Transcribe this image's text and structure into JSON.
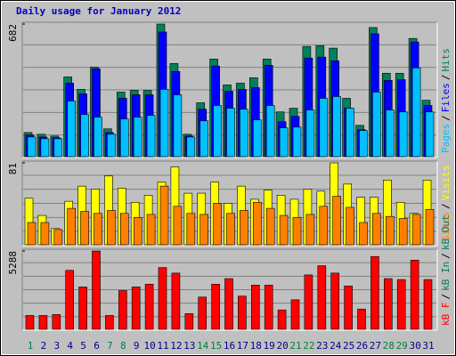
{
  "chart_data": [
    {
      "type": "bar",
      "title": "Daily usage for January 2012",
      "ylim": [
        0,
        682
      ],
      "yticks": [
        682
      ],
      "legend_reversed": true,
      "legend_separator": "/",
      "series": [
        {
          "name": "Hits",
          "color": "#00805c",
          "values": [
            124,
            115,
            106,
            410,
            346,
            461,
            143,
            332,
            341,
            341,
            682,
            479,
            115,
            277,
            502,
            369,
            378,
            406,
            502,
            230,
            249,
            567,
            571,
            558,
            300,
            161,
            664,
            429,
            429,
            608,
            290
          ]
        },
        {
          "name": "Files",
          "color": "#0000ff",
          "values": [
            111,
            101,
            97,
            378,
            323,
            452,
            124,
            300,
            318,
            318,
            641,
            438,
            106,
            244,
            466,
            337,
            346,
            355,
            470,
            180,
            207,
            507,
            512,
            493,
            249,
            138,
            632,
            392,
            396,
            590,
            263
          ]
        },
        {
          "name": "Pages",
          "color": "#00c0ff",
          "values": [
            101,
            92,
            92,
            286,
            217,
            203,
            115,
            194,
            203,
            212,
            346,
            318,
            101,
            184,
            263,
            249,
            244,
            189,
            263,
            148,
            152,
            240,
            300,
            309,
            249,
            134,
            332,
            240,
            230,
            456,
            230
          ]
        }
      ]
    },
    {
      "type": "bar",
      "ylim": [
        0,
        81
      ],
      "yticks": [
        81
      ],
      "legend_reversed": true,
      "legend_separator": "/",
      "series": [
        {
          "name": "Visits",
          "color": "#ffff00",
          "values": [
            46,
            29,
            16,
            43,
            58,
            55,
            68,
            56,
            42,
            49,
            62,
            77,
            51,
            51,
            62,
            41,
            58,
            45,
            54,
            49,
            45,
            55,
            53,
            81,
            60,
            47,
            47,
            64,
            42,
            31,
            64
          ]
        },
        {
          "name": "Sites",
          "color": "#ff8000",
          "values": [
            22,
            22,
            15,
            36,
            33,
            31,
            34,
            31,
            27,
            30,
            58,
            38,
            31,
            30,
            41,
            31,
            34,
            42,
            36,
            29,
            27,
            30,
            38,
            48,
            37,
            22,
            31,
            28,
            26,
            30,
            35
          ]
        }
      ]
    },
    {
      "type": "bar",
      "ylim": [
        0,
        5288
      ],
      "yticks": [
        5288
      ],
      "legend_reversed": false,
      "legend_separator": "/",
      "categories": [
        "1",
        "2",
        "3",
        "4",
        "5",
        "6",
        "7",
        "8",
        "9",
        "10",
        "11",
        "12",
        "13",
        "14",
        "15",
        "16",
        "17",
        "18",
        "19",
        "20",
        "21",
        "22",
        "23",
        "24",
        "25",
        "26",
        "27",
        "28",
        "29",
        "30",
        "31"
      ],
      "label_colors": [
        "#008040",
        "#00008b",
        "#00008b",
        "#00008b",
        "#00008b",
        "#00008b",
        "#008040",
        "#008040",
        "#00008b",
        "#00008b",
        "#00008b",
        "#00008b",
        "#00008b",
        "#008040",
        "#008040",
        "#00008b",
        "#00008b",
        "#00008b",
        "#00008b",
        "#00008b",
        "#008040",
        "#008040",
        "#00008b",
        "#00008b",
        "#00008b",
        "#00008b",
        "#00008b",
        "#008040",
        "#008040",
        "#00008b",
        "#00008b"
      ],
      "series": [
        {
          "name": "kB F",
          "color": "#ff0000",
          "values": [
            933,
            933,
            995,
            3981,
            2862,
            5288,
            933,
            2613,
            2862,
            3048,
            4168,
            3795,
            1058,
            2177,
            3048,
            3422,
            2240,
            2986,
            2986,
            1306,
            1991,
            3671,
            4293,
            3795,
            2924,
            1369,
            4915,
            3422,
            3359,
            4666,
            3359
          ]
        }
      ],
      "legend_only": [
        {
          "name": "kB In",
          "color": "#00805c"
        },
        {
          "name": "kB Out",
          "color": "#00805c"
        }
      ]
    }
  ]
}
